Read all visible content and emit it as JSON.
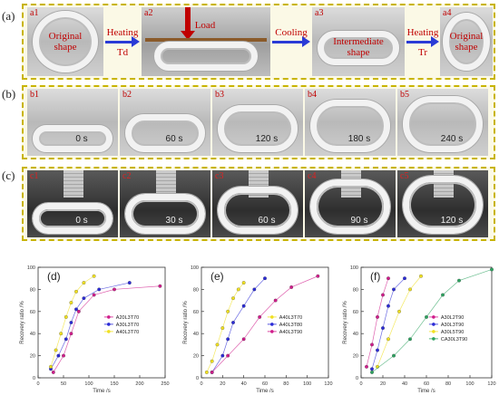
{
  "rows": {
    "a": {
      "label": "(a)",
      "panels": [
        {
          "sub": "a1",
          "caption": "Original\nshape"
        },
        {
          "sub": "a2",
          "caption": "Load"
        },
        {
          "sub": "a3",
          "caption": "Intermediate\nshape"
        },
        {
          "sub": "a4",
          "caption": "Original\nshape"
        }
      ],
      "arrows": [
        {
          "top": "Heating",
          "bottom": "Td"
        },
        {
          "top": "Cooling",
          "bottom": ""
        },
        {
          "top": "Heating",
          "bottom": "Tr"
        }
      ]
    },
    "b": {
      "label": "(b)",
      "panels": [
        {
          "sub": "b1",
          "time": "0 s"
        },
        {
          "sub": "b2",
          "time": "60 s"
        },
        {
          "sub": "b3",
          "time": "120 s"
        },
        {
          "sub": "b4",
          "time": "180 s"
        },
        {
          "sub": "b5",
          "time": "240 s"
        }
      ]
    },
    "c": {
      "label": "(c)",
      "panels": [
        {
          "sub": "c1",
          "time": "0 s"
        },
        {
          "sub": "c2",
          "time": "30 s"
        },
        {
          "sub": "c3",
          "time": "60 s"
        },
        {
          "sub": "c4",
          "time": "90 s"
        },
        {
          "sub": "c5",
          "time": "120 s"
        }
      ]
    }
  },
  "chart_data": [
    {
      "panel": "(d)",
      "type": "line",
      "xlabel": "Time /s",
      "ylabel": "Recovery ratio /%",
      "xlim": [
        0,
        250
      ],
      "ylim": [
        0,
        100
      ],
      "xticks": [
        "0",
        "50",
        "100",
        "150",
        "200",
        "250"
      ],
      "yticks": [
        "0",
        "20",
        "40",
        "60",
        "80",
        "100"
      ],
      "series": [
        {
          "name": "A20L3T70",
          "color": "#d01c8b",
          "x": [
            30,
            50,
            65,
            80,
            110,
            150,
            240
          ],
          "y": [
            5,
            20,
            40,
            60,
            75,
            80,
            83
          ]
        },
        {
          "name": "A30L3T70",
          "color": "#2b2bd6",
          "x": [
            25,
            40,
            55,
            65,
            75,
            90,
            120,
            180
          ],
          "y": [
            8,
            20,
            35,
            50,
            62,
            72,
            80,
            86
          ]
        },
        {
          "name": "A40L3T70",
          "color": "#f0e020",
          "x": [
            25,
            35,
            45,
            55,
            65,
            75,
            90,
            110
          ],
          "y": [
            10,
            25,
            40,
            55,
            68,
            78,
            86,
            92
          ]
        }
      ]
    },
    {
      "panel": "(e)",
      "type": "line",
      "xlabel": "Time /s",
      "ylabel": "Recovery ratio /%",
      "xlim": [
        0,
        120
      ],
      "ylim": [
        0,
        100
      ],
      "xticks": [
        "0",
        "20",
        "40",
        "60",
        "80",
        "100",
        "120"
      ],
      "yticks": [
        "0",
        "20",
        "40",
        "60",
        "80",
        "100"
      ],
      "series": [
        {
          "name": "A40L3T70",
          "color": "#f0e020",
          "x": [
            5,
            10,
            15,
            20,
            25,
            30,
            35,
            40
          ],
          "y": [
            5,
            15,
            30,
            45,
            60,
            72,
            80,
            86
          ]
        },
        {
          "name": "A40L3T80",
          "color": "#2b2bd6",
          "x": [
            10,
            20,
            25,
            30,
            40,
            50,
            60
          ],
          "y": [
            5,
            20,
            35,
            50,
            65,
            80,
            90
          ]
        },
        {
          "name": "A40L3T90",
          "color": "#d01c8b",
          "x": [
            10,
            25,
            40,
            55,
            70,
            85,
            110
          ],
          "y": [
            5,
            20,
            35,
            55,
            70,
            82,
            92
          ]
        }
      ]
    },
    {
      "panel": "(f)",
      "type": "line",
      "xlabel": "Time /s",
      "ylabel": "Recovery ratio /%",
      "xlim": [
        0,
        120
      ],
      "ylim": [
        0,
        100
      ],
      "xticks": [
        "0",
        "20",
        "40",
        "60",
        "80",
        "100",
        "120"
      ],
      "yticks": [
        "0",
        "20",
        "40",
        "60",
        "80",
        "100"
      ],
      "series": [
        {
          "name": "A30L2T90",
          "color": "#d01c8b",
          "x": [
            5,
            10,
            15,
            20,
            25
          ],
          "y": [
            10,
            30,
            55,
            75,
            90
          ]
        },
        {
          "name": "A30L3T90",
          "color": "#2b2bd6",
          "x": [
            10,
            15,
            20,
            25,
            30,
            40
          ],
          "y": [
            8,
            25,
            45,
            65,
            80,
            90
          ]
        },
        {
          "name": "A30L5T90",
          "color": "#f0e020",
          "x": [
            15,
            25,
            35,
            45,
            55
          ],
          "y": [
            10,
            35,
            60,
            80,
            92
          ]
        },
        {
          "name": "CA30L3T90",
          "color": "#2ca25f",
          "x": [
            10,
            30,
            45,
            60,
            75,
            90,
            120
          ],
          "y": [
            5,
            20,
            35,
            55,
            75,
            88,
            98
          ]
        }
      ]
    }
  ]
}
